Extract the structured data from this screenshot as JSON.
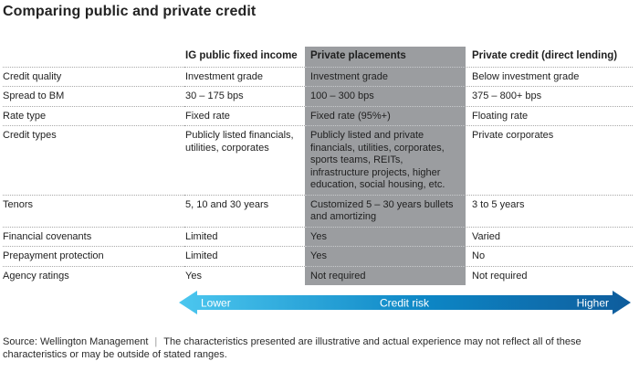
{
  "title": "Comparing public and private credit",
  "chart_data": {
    "type": "table",
    "title": "Comparing public and private credit",
    "columns": [
      "",
      "IG public fixed income",
      "Private placements",
      "Private credit (direct lending)"
    ],
    "highlighted_column": "Private placements",
    "rows": [
      {
        "label": "Credit quality",
        "values": [
          "Investment grade",
          "Investment grade",
          "Below investment grade"
        ]
      },
      {
        "label": "Spread to BM",
        "values": [
          "30 – 175 bps",
          "100 – 300 bps",
          "375 – 800+ bps"
        ]
      },
      {
        "label": "Rate type",
        "values": [
          "Fixed rate",
          "Fixed rate (95%+)",
          "Floating rate"
        ]
      },
      {
        "label": "Credit types",
        "values": [
          "Publicly listed financials, utilities, corporates",
          "Publicly listed and private financials, utilities, corporates, sports teams, REITs, infrastructure projects, higher education, social housing, etc.",
          "Private corporates"
        ]
      },
      {
        "label": "Tenors",
        "values": [
          "5, 10 and 30 years",
          "Customized 5 – 30 years bullets and amortizing",
          "3 to 5 years"
        ]
      },
      {
        "label": "Financial covenants",
        "values": [
          "Limited",
          "Yes",
          "Varied"
        ]
      },
      {
        "label": "Prepayment protection",
        "values": [
          "Limited",
          "Yes",
          "No"
        ]
      },
      {
        "label": "Agency ratings",
        "values": [
          "Yes",
          "Not required",
          "Not required"
        ]
      }
    ],
    "axis_annotation": {
      "label": "Credit risk",
      "from": "Lower",
      "to": "Higher",
      "direction": "double-headed arrow, light blue (low) to dark blue (high), left to right"
    }
  },
  "arrow": {
    "left_label": "Lower",
    "center_label": "Credit risk",
    "right_label": "Higher",
    "gradient_start": "#4cc7ef",
    "gradient_mid": "#0d86c5",
    "gradient_end": "#0e5c9c"
  },
  "footer": {
    "source": "Source: Wellington Management",
    "separator": "|",
    "disclaimer": "The characteristics presented are illustrative and actual experience may not reflect all of these characteristics or may be outside of stated ranges."
  },
  "colors": {
    "highlight_column_bg": "#9b9da0",
    "title_text": "#232323",
    "body_text": "#1f1f1f",
    "dotted_rule": "#a9a9a9"
  }
}
